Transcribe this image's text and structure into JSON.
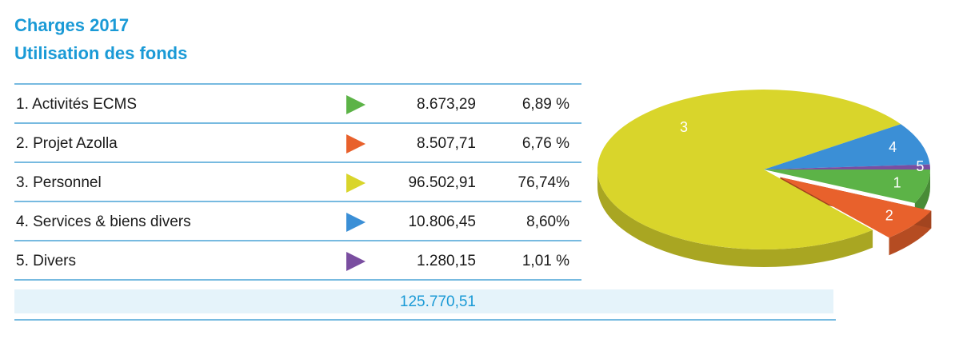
{
  "header": {
    "title": "Charges 2017",
    "subtitle": "Utilisation des fonds"
  },
  "table": {
    "rows": [
      {
        "label": "1. Activités ECMS",
        "amount": "8.673,29"
      },
      {
        "label": "2. Projet Azolla",
        "amount": "8.507,71"
      },
      {
        "label": "3. Personnel",
        "amount": "96.502,91"
      },
      {
        "label": "4. Services & biens divers",
        "amount": "10.806,45"
      },
      {
        "label": "5. Divers",
        "amount": "1.280,15"
      }
    ],
    "total": "125.770,51"
  },
  "chart_data": {
    "type": "pie",
    "categories": [
      "1",
      "2",
      "3",
      "4",
      "5"
    ],
    "values": [
      6.89,
      6.76,
      76.74,
      8.6,
      1.01
    ],
    "value_labels": [
      "6,89 %",
      "6,76 %",
      "76,74%",
      "8,60%",
      "1,01 %"
    ],
    "colors": [
      "#5cb347",
      "#e8612c",
      "#d9d52b",
      "#3b8fd6",
      "#7a4ea0"
    ]
  }
}
